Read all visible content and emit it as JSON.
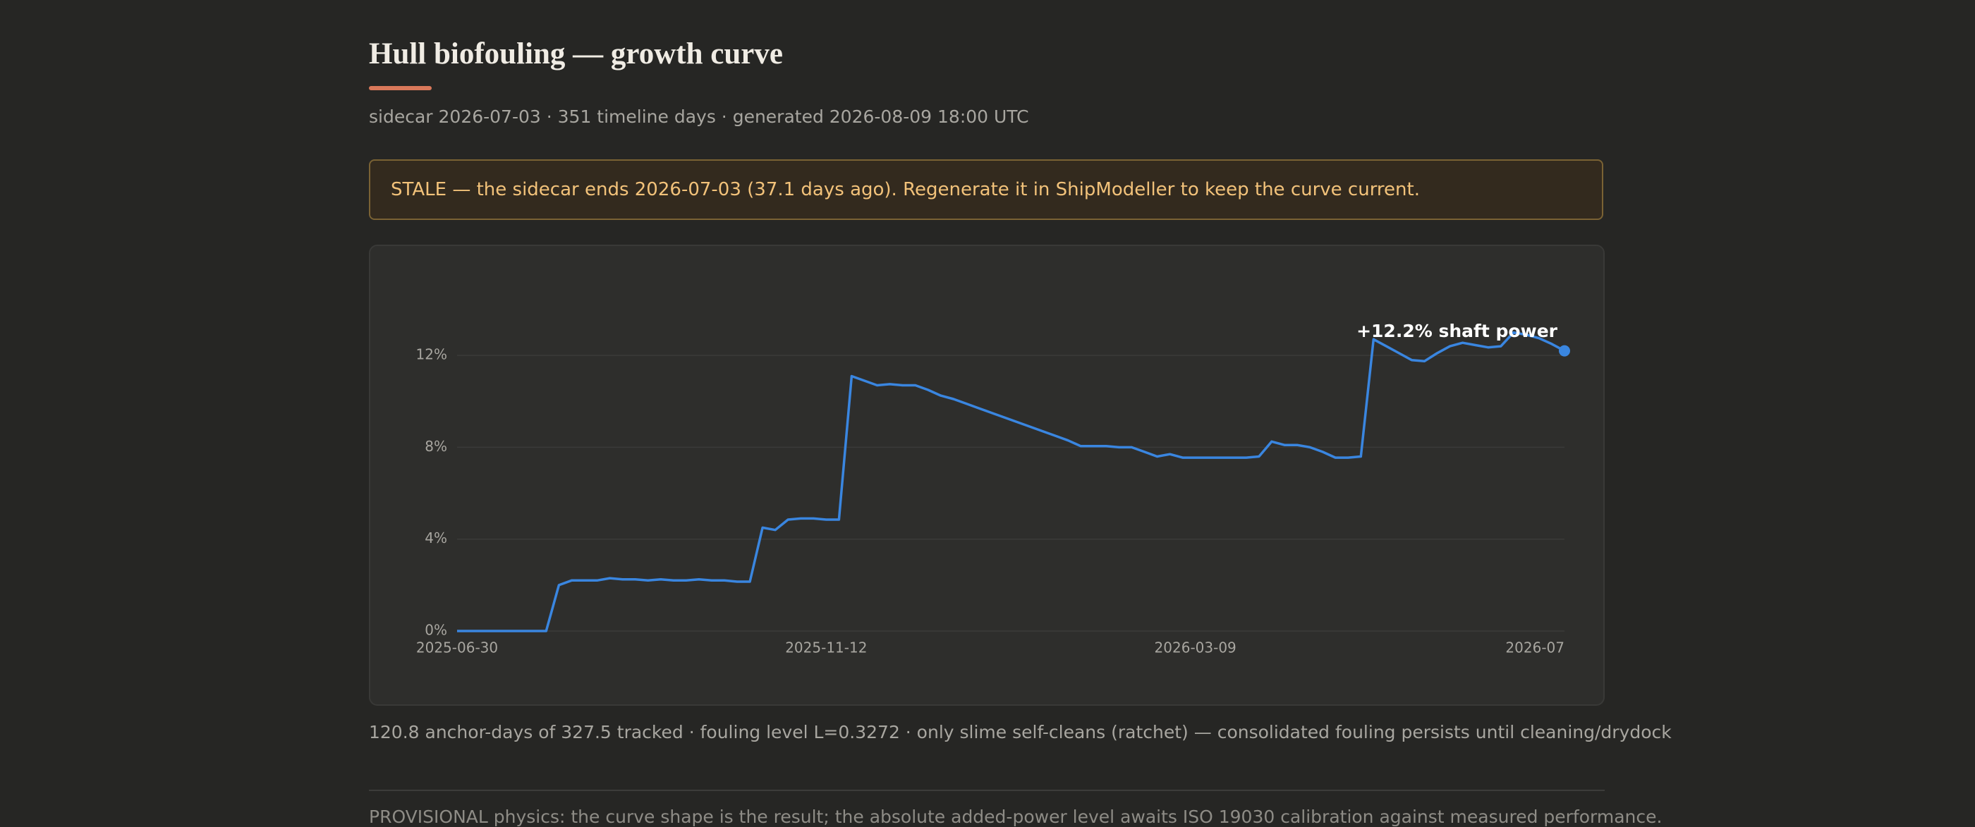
{
  "header": {
    "title": "Hull biofouling — growth curve",
    "subtitle": "sidecar 2026-07-03 · 351 timeline days · generated 2026-08-09 18:00 UTC"
  },
  "warning": "STALE — the sidecar ends 2026-07-03 (37.1 days ago). Regenerate it in ShipModeller to keep the curve current.",
  "chart_data": {
    "type": "line",
    "color": "#3a86e0",
    "annotation": "+12.2% shaft power",
    "grid": true,
    "categories": [
      "2025-06-30",
      null,
      null,
      null,
      null,
      null,
      null,
      null,
      null,
      null,
      null,
      null,
      null,
      null,
      null,
      null,
      null,
      null,
      null,
      null,
      null,
      null,
      null,
      null,
      null,
      null,
      null,
      null,
      null,
      "2025-11-12",
      null,
      null,
      null,
      null,
      null,
      null,
      null,
      null,
      null,
      null,
      null,
      null,
      null,
      null,
      null,
      null,
      null,
      null,
      null,
      null,
      null,
      null,
      null,
      null,
      null,
      null,
      null,
      null,
      "2026-03-09",
      null,
      null,
      null,
      null,
      null,
      null,
      null,
      null,
      null,
      null,
      null,
      null,
      null,
      null,
      null,
      null,
      null,
      null,
      null,
      null,
      null,
      null,
      null,
      null,
      null,
      null,
      null,
      null,
      "2026-07"
    ],
    "values": [
      0,
      0,
      0,
      0,
      0,
      0,
      0,
      0,
      2.0,
      2.2,
      2.2,
      2.2,
      2.3,
      2.25,
      2.25,
      2.2,
      2.25,
      2.2,
      2.2,
      2.25,
      2.2,
      2.2,
      2.15,
      2.15,
      4.5,
      4.4,
      4.85,
      4.9,
      4.9,
      4.85,
      4.85,
      11.1,
      10.9,
      10.7,
      10.75,
      10.7,
      10.7,
      10.5,
      10.25,
      10.1,
      9.9,
      9.7,
      9.5,
      9.3,
      9.1,
      8.9,
      8.7,
      8.5,
      8.3,
      8.05,
      8.05,
      8.05,
      8.0,
      8.0,
      7.8,
      7.6,
      7.7,
      7.55,
      7.55,
      7.55,
      7.55,
      7.55,
      7.55,
      7.6,
      8.25,
      8.1,
      8.1,
      8.0,
      7.8,
      7.55,
      7.55,
      7.6,
      12.7,
      12.4,
      12.1,
      11.8,
      11.75,
      12.1,
      12.4,
      12.55,
      12.45,
      12.35,
      12.4,
      13.0,
      12.9,
      12.75,
      12.5,
      12.2
    ],
    "ylim": [
      0,
      14
    ],
    "yticks": [
      {
        "value": 0,
        "label": "0%"
      },
      {
        "value": 4,
        "label": "4%"
      },
      {
        "value": 8,
        "label": "8%"
      },
      {
        "value": 12,
        "label": "12%"
      }
    ]
  },
  "footer": "120.8 anchor-days of 327.5 tracked · fouling level L=0.3272 · only slime self-cleans (ratchet) — consolidated fouling persists until cleaning/drydock",
  "provisional": "PROVISIONAL physics: the curve shape is the result; the absolute added-power level awaits ISO 19030 calibration against measured performance."
}
